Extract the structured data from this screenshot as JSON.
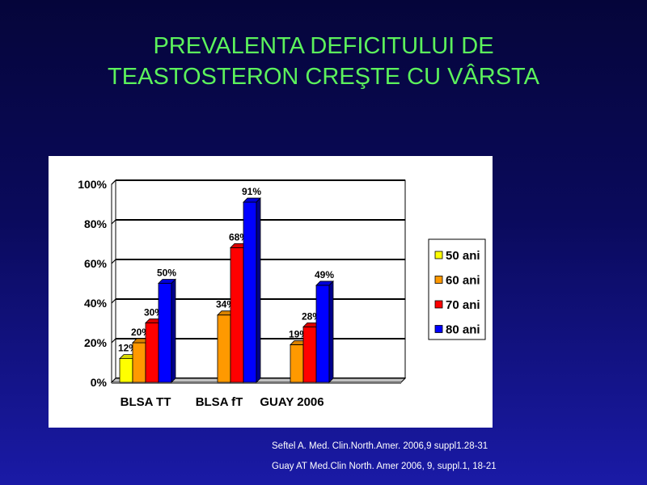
{
  "slide": {
    "title_line1": "PREVALENTA DEFICITULUI DE",
    "title_line2": "TEASTOSTERON CREŞTE CU VÂRSTA"
  },
  "citations": [
    "Seftel A. Med. Clin.North.Amer. 2006,9 suppl1.28-31",
    "Guay AT Med.Clin North. Amer 2006, 9, suppl.1, 18-21"
  ],
  "colors": {
    "title": "#5cf25c",
    "series_50": "#ffff00",
    "series_60": "#ff9900",
    "series_70": "#ff0000",
    "series_80": "#0000ff"
  },
  "chart_data": {
    "type": "bar",
    "style": "3d-clustered",
    "categories": [
      "BLSA TT",
      "BLSA fT",
      "GUAY 2006"
    ],
    "yticks": [
      "0%",
      "20%",
      "40%",
      "60%",
      "80%",
      "100%"
    ],
    "ylim": [
      0,
      100
    ],
    "grid": true,
    "legend_position": "right",
    "series": [
      {
        "name": "50 ani",
        "color": "#ffff00",
        "values": [
          12,
          null,
          null
        ],
        "labels": [
          "12%",
          "",
          ""
        ]
      },
      {
        "name": "60 ani",
        "color": "#ff9900",
        "values": [
          20,
          34,
          19
        ],
        "labels": [
          "20%",
          "34%",
          "19%"
        ]
      },
      {
        "name": "70 ani",
        "color": "#ff0000",
        "values": [
          30,
          68,
          28
        ],
        "labels": [
          "30%",
          "68%",
          "28%"
        ]
      },
      {
        "name": "80 ani",
        "color": "#0000ff",
        "values": [
          50,
          91,
          49
        ],
        "labels": [
          "50%",
          "91%",
          "49%"
        ]
      }
    ]
  }
}
